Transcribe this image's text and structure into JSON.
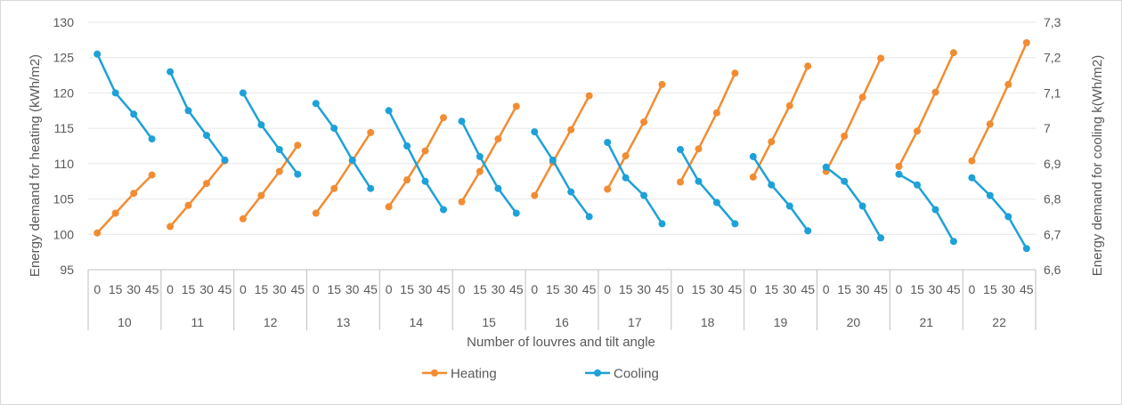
{
  "chart_data": {
    "type": "line",
    "title": "",
    "xlabel": "Number of louvres and tilt angle",
    "ylabel_left": "Energy demand for heating (kWh/m2)",
    "ylabel_right": "Energy demand for cooling k(Wh/m2)",
    "y_left": {
      "min": 95,
      "max": 130,
      "step": 5,
      "ticks": [
        "95",
        "100",
        "105",
        "110",
        "115",
        "120",
        "125",
        "130"
      ]
    },
    "y_right": {
      "min": 6.6,
      "max": 7.3,
      "step": 0.1,
      "ticks": [
        "6,6",
        "6,7",
        "6,8",
        "6,9",
        "7",
        "7,1",
        "7,2",
        "7,3"
      ]
    },
    "groups": [
      "10",
      "11",
      "12",
      "13",
      "14",
      "15",
      "16",
      "17",
      "18",
      "19",
      "20",
      "21",
      "22"
    ],
    "angles": [
      "0",
      "15",
      "30",
      "45"
    ],
    "grid": true,
    "legend_position": "bottom",
    "series": [
      {
        "name": "Heating",
        "axis": "left",
        "color": "#F28C32",
        "values": [
          [
            100.2,
            103.0,
            105.8,
            108.4
          ],
          [
            101.1,
            104.1,
            107.2,
            110.4
          ],
          [
            102.2,
            105.5,
            108.9,
            112.6
          ],
          [
            103.0,
            106.5,
            110.4,
            114.4
          ],
          [
            103.9,
            107.7,
            111.8,
            116.5
          ],
          [
            104.6,
            108.9,
            113.5,
            118.1
          ],
          [
            105.5,
            110.2,
            114.8,
            119.6
          ],
          [
            106.4,
            111.1,
            115.9,
            121.2
          ],
          [
            107.4,
            112.1,
            117.2,
            122.8
          ],
          [
            108.1,
            113.1,
            118.2,
            123.8
          ],
          [
            108.9,
            113.9,
            119.4,
            124.9
          ],
          [
            109.6,
            114.6,
            120.1,
            125.7
          ],
          [
            110.4,
            115.6,
            121.2,
            127.1
          ]
        ]
      },
      {
        "name": "Cooling",
        "axis": "right",
        "color": "#1DA1D8",
        "values": [
          [
            7.21,
            7.1,
            7.04,
            6.97
          ],
          [
            7.16,
            7.05,
            6.98,
            6.91
          ],
          [
            7.1,
            7.01,
            6.94,
            6.87
          ],
          [
            7.07,
            7.0,
            6.91,
            6.83
          ],
          [
            7.05,
            6.95,
            6.85,
            6.77
          ],
          [
            7.02,
            6.92,
            6.83,
            6.76
          ],
          [
            6.99,
            6.91,
            6.82,
            6.75
          ],
          [
            6.96,
            6.86,
            6.81,
            6.73
          ],
          [
            6.94,
            6.85,
            6.79,
            6.73
          ],
          [
            6.92,
            6.84,
            6.78,
            6.71
          ],
          [
            6.89,
            6.85,
            6.78,
            6.69
          ],
          [
            6.87,
            6.84,
            6.77,
            6.68
          ],
          [
            6.86,
            6.81,
            6.75,
            6.66
          ]
        ]
      }
    ]
  }
}
